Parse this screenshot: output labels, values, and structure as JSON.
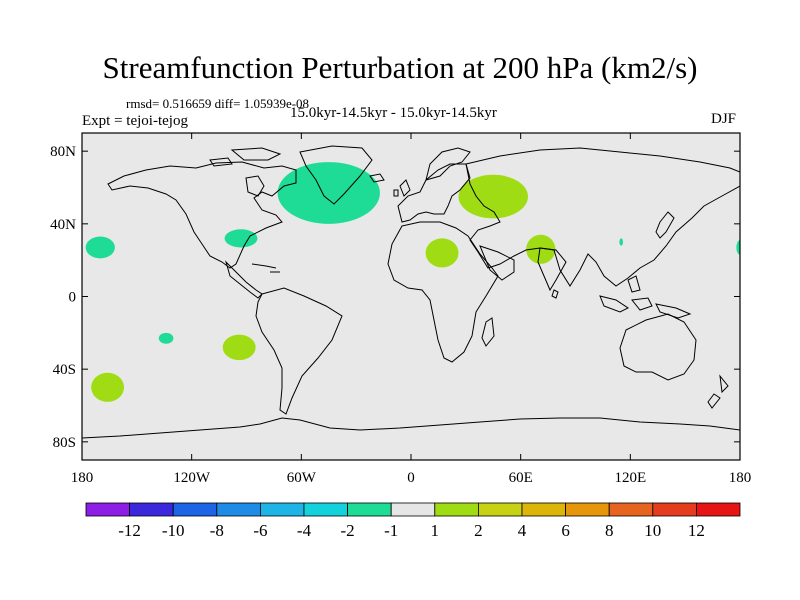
{
  "title": "Streamfunction Perturbation at 200 hPa (km2/s)",
  "stats": "rmsd= 0.516659 diff= 1.05939e-08",
  "period": "15.0kyr-14.5kyr - 15.0kyr-14.5kyr",
  "experiment": "Expt = tejoi-tejog",
  "season": "DJF",
  "map": {
    "projection": "cylindrical-equidistant",
    "lon_range": [
      -180,
      180
    ],
    "lat_range": [
      -90,
      90
    ],
    "background_color": "#e8e8e8",
    "lat_ticks": [
      {
        "value": 80,
        "label": "80N"
      },
      {
        "value": 40,
        "label": "40N"
      },
      {
        "value": 0,
        "label": "0"
      },
      {
        "value": -40,
        "label": "40S"
      },
      {
        "value": -80,
        "label": "80S"
      }
    ],
    "lon_ticks": [
      {
        "value": -180,
        "label": "180"
      },
      {
        "value": -120,
        "label": "120W"
      },
      {
        "value": -60,
        "label": "60W"
      },
      {
        "value": 0,
        "label": "0"
      },
      {
        "value": 60,
        "label": "60E"
      },
      {
        "value": 120,
        "label": "120E"
      },
      {
        "value": 180,
        "label": "180"
      }
    ]
  },
  "colorbar": {
    "colors": [
      "#8c1ee6",
      "#3c28dc",
      "#1e64e6",
      "#1e8ce6",
      "#1eb4e6",
      "#14d2dc",
      "#1edc96",
      "#e6e6e6",
      "#a0dc14",
      "#c8d214",
      "#dcb40a",
      "#e6960a",
      "#e6641e",
      "#e63c1e",
      "#e61414"
    ],
    "labels": [
      "-12",
      "-10",
      "-8",
      "-6",
      "-4",
      "-2",
      "-1",
      "1",
      "2",
      "4",
      "6",
      "8",
      "10",
      "12"
    ]
  },
  "chart_data": {
    "type": "map-contour",
    "variable": "Streamfunction Perturbation at 200 hPa",
    "units": "km2/s",
    "season": "DJF",
    "anomaly_regions": [
      {
        "level": "-1",
        "color": "#1edc96",
        "region": "North Atlantic / Labrador Sea",
        "lon": -45,
        "lat": 57,
        "rlon": 28,
        "rlat": 17
      },
      {
        "level": "-1",
        "color": "#1edc96",
        "region": "US East Coast",
        "lon": -93,
        "lat": 32,
        "rlon": 9,
        "rlat": 5
      },
      {
        "level": "-1",
        "color": "#1edc96",
        "region": "Central Pacific",
        "lon": -170,
        "lat": 27,
        "rlon": 8,
        "rlat": 6
      },
      {
        "level": "-1",
        "color": "#1edc96",
        "region": "Dateline east edge",
        "lon": 180,
        "lat": 27,
        "rlon": 2,
        "rlat": 4
      },
      {
        "level": "-1",
        "color": "#1edc96",
        "region": "South Pacific small",
        "lon": -134,
        "lat": -23,
        "rlon": 4,
        "rlat": 3
      },
      {
        "level": "1",
        "color": "#a0dc14",
        "region": "South Pacific west",
        "lon": -166,
        "lat": -50,
        "rlon": 9,
        "rlat": 8
      },
      {
        "level": "1",
        "color": "#a0dc14",
        "region": "South Pacific east",
        "lon": -94,
        "lat": -28,
        "rlon": 9,
        "rlat": 7
      },
      {
        "level": "1",
        "color": "#a0dc14",
        "region": "Eurasia / Caspian",
        "lon": 45,
        "lat": 55,
        "rlon": 19,
        "rlat": 12
      },
      {
        "level": "1",
        "color": "#a0dc14",
        "region": "North Africa / Mediterranean",
        "lon": 17,
        "lat": 24,
        "rlon": 9,
        "rlat": 8
      },
      {
        "level": "1",
        "color": "#a0dc14",
        "region": "Arabian Sea / India",
        "lon": 71,
        "lat": 26,
        "rlon": 8,
        "rlat": 8
      },
      {
        "level": "-1",
        "color": "#1edc96",
        "region": "East Asia small",
        "lon": 115,
        "lat": 30,
        "rlon": 1,
        "rlat": 2
      }
    ]
  }
}
